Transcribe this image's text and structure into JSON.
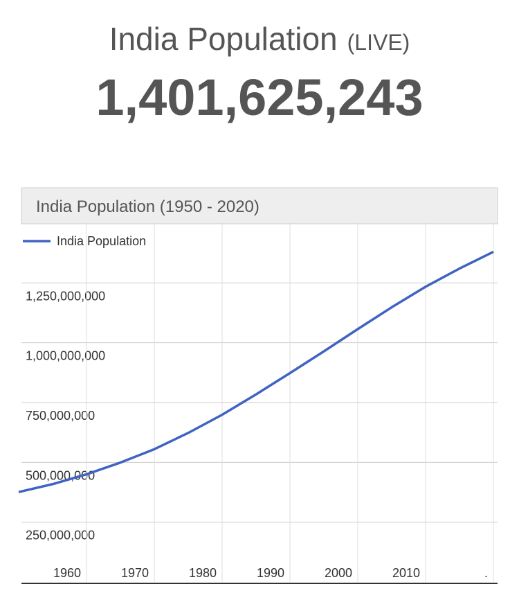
{
  "header": {
    "title": "India Population",
    "live": "(LIVE)",
    "count": "1,401,625,243"
  },
  "chart_data": {
    "type": "line",
    "title": "India Population (1950 - 2020)",
    "x": [
      1950,
      1955,
      1960,
      1965,
      1970,
      1975,
      1980,
      1985,
      1990,
      1995,
      2000,
      2005,
      2010,
      2015,
      2020
    ],
    "series": [
      {
        "name": "India Population",
        "color": "#3f63c1",
        "values": [
          376000000,
          409000000,
          450000000,
          499000000,
          555000000,
          623000000,
          699000000,
          784000000,
          873000000,
          964000000,
          1057000000,
          1148000000,
          1234000000,
          1310000000,
          1380000000
        ]
      }
    ],
    "xlim": [
      1950,
      2020
    ],
    "xticks": [
      1960,
      1970,
      1980,
      1990,
      2000,
      2010,
      {
        "value": 2020,
        "label": "."
      }
    ],
    "ylim": [
      0,
      1500000000
    ],
    "yticks": [
      {
        "value": 250000000,
        "label": "250,000,000"
      },
      {
        "value": 500000000,
        "label": "500,000,000"
      },
      {
        "value": 750000000,
        "label": "750,000,000"
      },
      {
        "value": 1000000000,
        "label": "1,000,000,000"
      },
      {
        "value": 1250000000,
        "label": "1,250,000,000"
      }
    ],
    "grid": true,
    "legend": "top-left"
  }
}
